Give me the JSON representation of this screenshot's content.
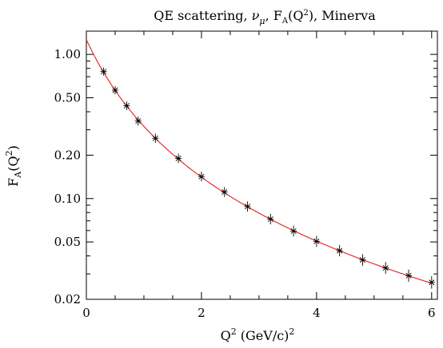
{
  "chart_data": {
    "type": "scatter",
    "title_parts": {
      "prefix": "QE scattering, ",
      "nu": "ν",
      "mu": "μ",
      "mid": ", F",
      "sub_a": "A",
      "open": "(Q",
      "sup2": "2",
      "suffix": "), Minerva"
    },
    "xlabel_parts": {
      "q": "Q",
      "sup2": "2",
      "rest": " (GeV/c)",
      "sup2b": "2"
    },
    "ylabel_parts": {
      "f": "F",
      "sub_a": "A",
      "open": "(Q",
      "sup2": "2",
      "close": ")"
    },
    "xlim": [
      0,
      6.1
    ],
    "ylim": [
      0.02,
      1.45
    ],
    "yscale": "log",
    "x_ticks": [
      {
        "value": 0,
        "label": "0"
      },
      {
        "value": 2,
        "label": "2"
      },
      {
        "value": 4,
        "label": "4"
      },
      {
        "value": 6,
        "label": "6"
      }
    ],
    "y_ticks": [
      {
        "value": 0.02,
        "label": "0.02"
      },
      {
        "value": 0.05,
        "label": "0.05"
      },
      {
        "value": 0.1,
        "label": "0.10"
      },
      {
        "value": 0.2,
        "label": "0.20"
      },
      {
        "value": 0.5,
        "label": "0.50"
      },
      {
        "value": 1.0,
        "label": "1.00"
      }
    ],
    "series": [
      {
        "kind": "points",
        "marker": "star",
        "color": "#000000",
        "x": [
          0.3,
          0.5,
          0.7,
          0.9,
          1.2,
          1.6,
          2.0,
          2.4,
          2.8,
          3.2,
          3.6,
          4.0,
          4.4,
          4.8,
          5.2,
          5.6,
          6.0
        ],
        "y": [
          0.76,
          0.565,
          0.44,
          0.345,
          0.262,
          0.19,
          0.142,
          0.111,
          0.088,
          0.072,
          0.0595,
          0.0505,
          0.0435,
          0.0375,
          0.033,
          0.0292,
          0.0262
        ]
      },
      {
        "kind": "curve",
        "color": "#e03030",
        "model": "dipole",
        "ga0": 1.267,
        "ma": 1.0
      }
    ],
    "grid": false,
    "colors": {
      "axes": "#000000",
      "curve": "#e03030",
      "points": "#000000"
    }
  }
}
